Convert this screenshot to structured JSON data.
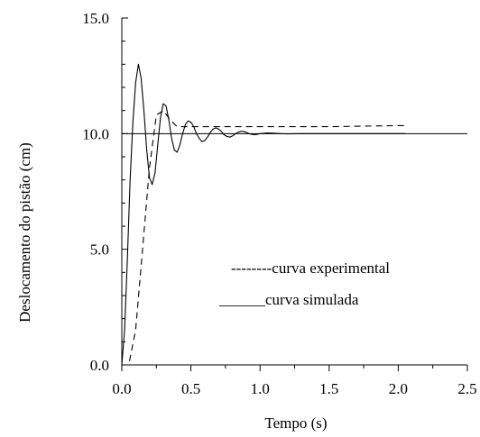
{
  "chart_data": {
    "type": "line",
    "title": "",
    "xlabel": "Tempo (s)",
    "ylabel": "Deslocamento do pistão (cm)",
    "xlim": [
      0,
      2.5
    ],
    "ylim": [
      0,
      15
    ],
    "x_ticks": [
      "0.0",
      "0.5",
      "1.0",
      "1.5",
      "2.0",
      "2.5"
    ],
    "y_ticks": [
      "0.0",
      "5.0",
      "10.0",
      "15.0"
    ],
    "reference_line": {
      "y": 10.0
    },
    "grid": false,
    "legend_position": "right",
    "series": [
      {
        "name": "curva experimental",
        "legend_label": "--------curva experimental",
        "style": "dashed",
        "x": [
          0.0,
          0.05,
          0.1,
          0.15,
          0.2,
          0.25,
          0.3,
          0.35,
          0.4,
          0.45,
          0.5,
          0.8,
          1.0,
          1.5,
          2.0,
          2.05
        ],
        "y": [
          0.0,
          0.0,
          1.5,
          5.0,
          8.5,
          10.8,
          11.0,
          10.6,
          10.3,
          10.3,
          10.3,
          10.3,
          10.3,
          10.3,
          10.35,
          10.35
        ]
      },
      {
        "name": "curva simulada",
        "legend_label": "______curva simulada",
        "style": "solid",
        "x": [
          0.0,
          0.02,
          0.04,
          0.06,
          0.08,
          0.1,
          0.12,
          0.14,
          0.16,
          0.18,
          0.2,
          0.22,
          0.24,
          0.26,
          0.28,
          0.3,
          0.32,
          0.34,
          0.36,
          0.38,
          0.4,
          0.42,
          0.44,
          0.46,
          0.48,
          0.5,
          0.52,
          0.54,
          0.56,
          0.58,
          0.6,
          0.62,
          0.64,
          0.66,
          0.68,
          0.7,
          0.72,
          0.74,
          0.76,
          0.78,
          0.8,
          0.82,
          0.84,
          0.86,
          0.88,
          0.9,
          0.92,
          0.94,
          0.96,
          0.98,
          1.0,
          1.05,
          1.1,
          1.15,
          1.2,
          1.3,
          1.4,
          1.6,
          1.8,
          2.0,
          2.05
        ],
        "y": [
          0.0,
          1.5,
          4.5,
          8.0,
          10.5,
          12.2,
          13.0,
          12.4,
          11.0,
          9.3,
          8.1,
          7.8,
          8.3,
          9.5,
          10.7,
          11.3,
          11.2,
          10.6,
          9.8,
          9.3,
          9.2,
          9.5,
          10.0,
          10.4,
          10.55,
          10.5,
          10.3,
          10.0,
          9.8,
          9.65,
          9.7,
          9.85,
          10.05,
          10.2,
          10.25,
          10.2,
          10.1,
          9.95,
          9.88,
          9.85,
          9.9,
          9.98,
          10.06,
          10.1,
          10.1,
          10.06,
          10.0,
          9.97,
          9.96,
          9.97,
          10.0,
          10.03,
          10.02,
          10.0,
          9.99,
          10.0,
          10.0,
          10.0,
          10.0,
          10.0,
          10.0
        ]
      }
    ]
  }
}
